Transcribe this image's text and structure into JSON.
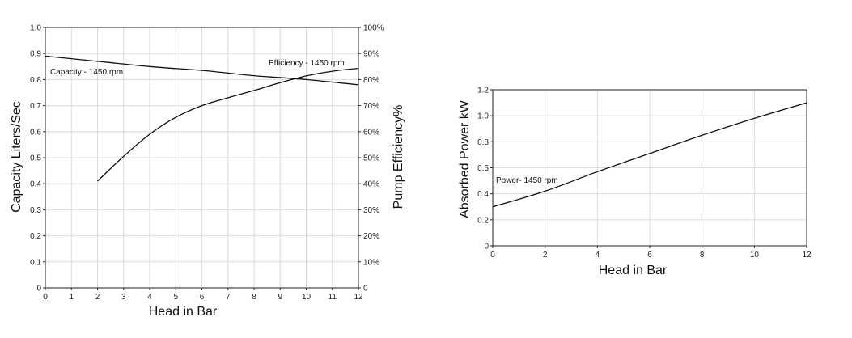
{
  "chart_data": [
    {
      "type": "line",
      "xlabel": "Head in Bar",
      "ylabel": "Capacity Liters/Sec",
      "y2label": "Pump Efficiency%",
      "xlim": [
        0,
        12
      ],
      "ylim": [
        0,
        1.0
      ],
      "y2lim": [
        0,
        100
      ],
      "grid": true,
      "x_ticks": [
        "0",
        "1",
        "2",
        "3",
        "4",
        "5",
        "6",
        "7",
        "8",
        "9",
        "10",
        "11",
        "12"
      ],
      "y_ticks": [
        "0",
        "0.1",
        "0.2",
        "0.3",
        "0.4",
        "0.5",
        "0.6",
        "0.7",
        "0.8",
        "0.9",
        "1.0"
      ],
      "y2_ticks": [
        "0",
        "10%",
        "20%",
        "30%",
        "40%",
        "50%",
        "60%",
        "70%",
        "80%",
        "90%",
        "100%"
      ],
      "series": [
        {
          "name": "Capacity",
          "label": "Capacity - 1450 rpm",
          "axis": "left",
          "x": [
            0,
            2,
            4,
            6,
            8,
            10,
            12
          ],
          "y": [
            0.89,
            0.87,
            0.85,
            0.835,
            0.815,
            0.8,
            0.78
          ]
        },
        {
          "name": "Efficiency",
          "label": "Efficiency - 1450 rpm",
          "axis": "right",
          "x": [
            2,
            3,
            4,
            5,
            6,
            7,
            8,
            9,
            10,
            11,
            12
          ],
          "y": [
            41,
            50.5,
            59,
            65.5,
            70,
            73,
            75.8,
            78.8,
            81.4,
            83.2,
            84.3
          ]
        }
      ]
    },
    {
      "type": "line",
      "xlabel": "Head in Bar",
      "ylabel": "Absorbed Power kW",
      "xlim": [
        0,
        12
      ],
      "ylim": [
        0,
        1.2
      ],
      "grid": true,
      "x_ticks": [
        "0",
        "2",
        "4",
        "6",
        "8",
        "10",
        "12"
      ],
      "y_ticks": [
        "0",
        "0.2",
        "0.4",
        "0.6",
        "0.8",
        "1.0",
        "1.2"
      ],
      "series": [
        {
          "name": "Power",
          "label": "Power- 1450 rpm",
          "x": [
            0,
            2,
            4,
            6,
            8,
            10,
            12
          ],
          "y": [
            0.3,
            0.42,
            0.57,
            0.71,
            0.85,
            0.98,
            1.1
          ]
        }
      ]
    }
  ]
}
